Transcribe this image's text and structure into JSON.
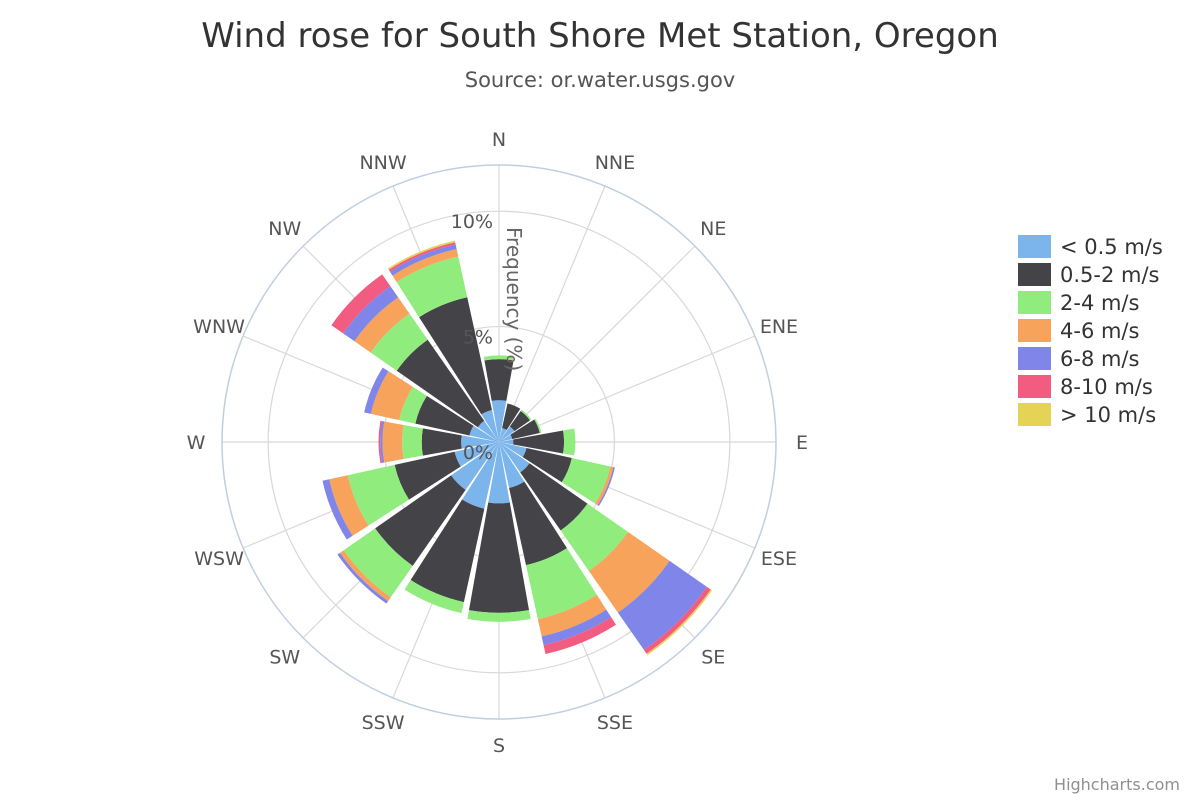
{
  "chart_data": {
    "type": "bar",
    "polar": true,
    "stacked": true,
    "title": "Wind rose for South Shore Met Station, Oregon",
    "subtitle": "Source: or.water.usgs.gov",
    "categories": [
      "N",
      "NNE",
      "NE",
      "ENE",
      "E",
      "ESE",
      "SE",
      "SSE",
      "S",
      "SSW",
      "SW",
      "WSW",
      "W",
      "WNW",
      "NW",
      "NNW"
    ],
    "y_axis": {
      "title": "Frequency (%)",
      "range": [
        0,
        12
      ],
      "tick_values": [
        0,
        5,
        10
      ],
      "tick_labels": [
        "0%",
        "5%",
        "10%"
      ]
    },
    "grid": true,
    "legend_position": "right",
    "series": [
      {
        "name": "< 0.5 m/s",
        "color": "#7cb5ec",
        "values": [
          1.81,
          0.62,
          0.82,
          0.59,
          0.62,
          1.22,
          1.61,
          2.04,
          2.66,
          2.96,
          2.53,
          1.97,
          1.64,
          1.31,
          1.12,
          1.42
        ]
      },
      {
        "name": "0.5-2 m/s",
        "color": "#434348",
        "values": [
          1.78,
          1.09,
          0.82,
          1.22,
          2.2,
          2.01,
          3.06,
          3.42,
          4.74,
          4.14,
          4.01,
          2.66,
          1.71,
          2.4,
          4.28,
          5.0
        ]
      },
      {
        "name": "2-4 m/s",
        "color": "#90ed7d",
        "values": [
          0.16,
          0.0,
          0.07,
          0.07,
          0.49,
          1.71,
          2.14,
          2.4,
          0.39,
          0.49,
          1.66,
          2.08,
          0.85,
          0.72,
          1.38,
          1.81
        ]
      },
      {
        "name": "4-6 m/s",
        "color": "#f7a35c",
        "values": [
          0.0,
          0.0,
          0.0,
          0.0,
          0.0,
          0.13,
          2.2,
          0.76,
          0.0,
          0.0,
          0.2,
          0.82,
          0.85,
          1.25,
          0.86,
          0.33
        ]
      },
      {
        "name": "6-8 m/s",
        "color": "#8085e9",
        "values": [
          0.0,
          0.0,
          0.0,
          0.0,
          0.0,
          0.07,
          1.97,
          0.39,
          0.0,
          0.0,
          0.13,
          0.3,
          0.1,
          0.3,
          0.59,
          0.2
        ]
      },
      {
        "name": "8-10 m/s",
        "color": "#f15c80",
        "values": [
          0.0,
          0.0,
          0.0,
          0.0,
          0.0,
          0.0,
          0.2,
          0.39,
          0.0,
          0.0,
          0.0,
          0.0,
          0.07,
          0.0,
          0.62,
          0.1
        ]
      },
      {
        "name": "> 10 m/s",
        "color": "#e4d354",
        "values": [
          0.0,
          0.0,
          0.0,
          0.0,
          0.0,
          0.0,
          0.07,
          0.0,
          0.0,
          0.0,
          0.0,
          0.0,
          0.0,
          0.0,
          0.0,
          0.07
        ]
      }
    ]
  },
  "credits": "Highcharts.com"
}
